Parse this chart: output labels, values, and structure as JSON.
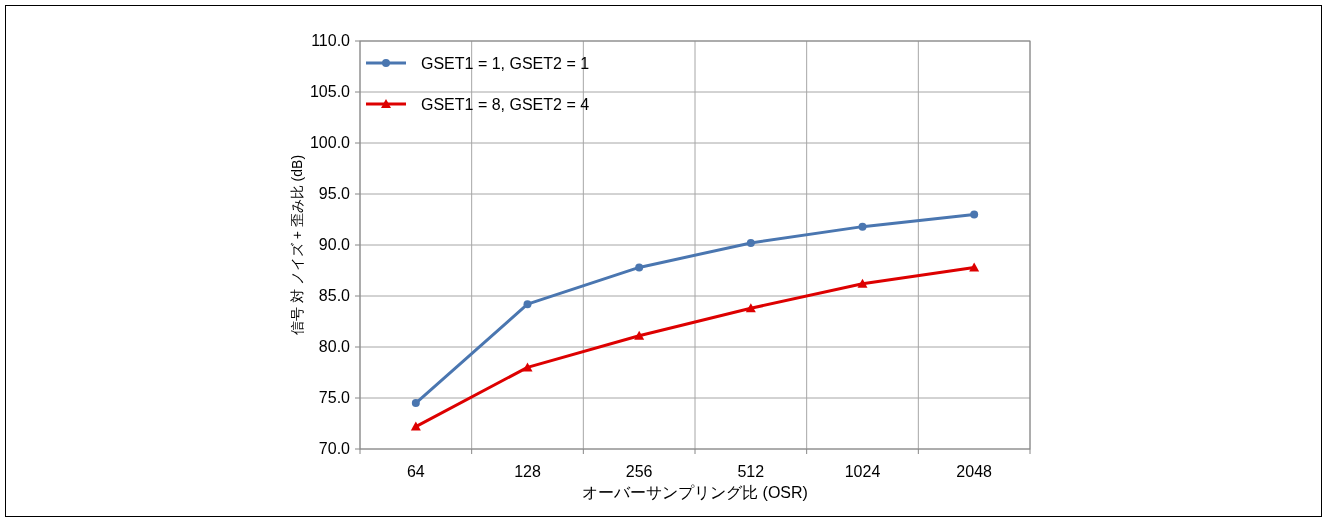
{
  "chart_data": {
    "type": "line",
    "xlabel": "オーバーサンプリング比 (OSR)",
    "ylabel": "信号 対 ノイズ + 歪み比 (dB)",
    "categories": [
      "64",
      "128",
      "256",
      "512",
      "1024",
      "2048"
    ],
    "series": [
      {
        "name": "GSET1 = 1, GSET2 = 1",
        "color": "#4a76b0",
        "marker": "circle",
        "values": [
          74.5,
          84.2,
          87.8,
          90.2,
          91.8,
          93.0
        ]
      },
      {
        "name": "GSET1 = 8, GSET2 = 4",
        "color": "#dd0000",
        "marker": "triangle",
        "values": [
          72.2,
          78.0,
          81.1,
          83.8,
          86.2,
          87.8
        ]
      }
    ],
    "ylim": [
      70,
      110
    ],
    "yticks": [
      {
        "value": 70,
        "label": "70.0"
      },
      {
        "value": 75,
        "label": "75.0"
      },
      {
        "value": 80,
        "label": "80.0"
      },
      {
        "value": 85,
        "label": "85.0"
      },
      {
        "value": 90,
        "label": "90.0"
      },
      {
        "value": 95,
        "label": "95.0"
      },
      {
        "value": 100,
        "label": "100.0"
      },
      {
        "value": 105,
        "label": "105.0"
      },
      {
        "value": 110,
        "label": "110.0"
      }
    ],
    "grid": true,
    "legend": "top left",
    "line_style": "solid"
  }
}
